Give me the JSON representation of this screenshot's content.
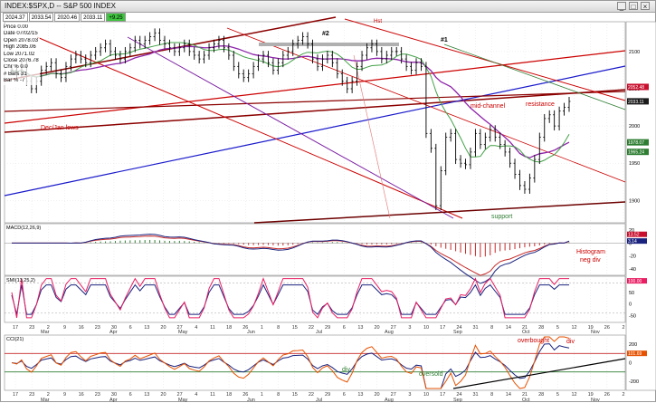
{
  "window": {
    "title": "INDEX:$SPX,D -- S&P 500 INDEX",
    "buttons": [
      "_",
      "□",
      "×"
    ]
  },
  "ohlc_strip": [
    "2024.37",
    "2033.54",
    "2020.46",
    "2033.11",
    "+9.25"
  ],
  "info_box": [
    "Price  0.00",
    "Date  07/02/15",
    "Open  2078.03",
    "High  2085.06",
    "Low  2071.02",
    "Close  2076.78",
    "Chr %  0.0",
    "# Bars 31",
    "Bar %  -7"
  ],
  "annotations": {
    "peak_label": "Hst",
    "label_1": "#1",
    "label_2": "#2",
    "mid_channel": "mid-channel",
    "resistance": "resistance",
    "dec_jan_lows": "Dec/Jan lows",
    "support": "support",
    "histogram_neg_div": "Histogram\nneg div",
    "overbought": "overbought",
    "div_top": "div",
    "div_bottom": "div",
    "oversold": "oversold"
  },
  "panel_labels": {
    "macd": "MACD(12,26,9)",
    "stoch": "SMI(13,25,2)",
    "cci": "CCI(21)"
  },
  "price_axis": {
    "ticks": [
      2100,
      2050,
      2000,
      1950,
      1900
    ],
    "tags": [
      {
        "text": "2052.48",
        "color": "#c8102e"
      },
      {
        "text": "2033.11",
        "color": "#1a1a1a"
      },
      {
        "text": "1978.07",
        "color": "#2e7d32"
      },
      {
        "text": "1965.24",
        "color": "#2e7d32"
      }
    ]
  },
  "macd_axis": {
    "ticks": [
      20,
      0,
      -20,
      -40
    ],
    "tags": [
      {
        "text": "13.52",
        "color": "#c8102e"
      },
      {
        "text": "3.14",
        "color": "#1a237e"
      }
    ]
  },
  "stoch_axis": {
    "ticks": [
      100,
      50,
      0,
      -50
    ],
    "tags": [
      {
        "text": "100.00",
        "color": "#e91e63"
      }
    ]
  },
  "cci_axis": {
    "ticks": [
      200,
      0,
      -200
    ],
    "tags": [
      {
        "text": "101.69",
        "color": "#e65100"
      }
    ]
  },
  "chart_data": {
    "type": "bar",
    "title": "INDEX:$SPX,D -- S&P 500 INDEX",
    "panels": [
      "price",
      "MACD",
      "stochastic",
      "CCI"
    ],
    "ylim": [
      1870,
      2140
    ],
    "x_day_ticks": [
      "17",
      "23",
      "2",
      "9",
      "16",
      "23",
      "30",
      "6",
      "13",
      "20",
      "27",
      "4",
      "11",
      "18",
      "26",
      "1",
      "8",
      "15",
      "22",
      "29",
      "6",
      "13",
      "20",
      "27",
      "3",
      "10",
      "17",
      "24",
      "31",
      "8",
      "14",
      "21",
      "28",
      "5",
      "12",
      "19",
      "26",
      "2"
    ],
    "x_months": [
      "Mar",
      "Apr",
      "May",
      "Jun",
      "Jul",
      "Aug",
      "Sep",
      "Oct",
      "Nov"
    ],
    "ohlc_last": {
      "open": 2024.37,
      "high": 2033.54,
      "low": 2020.46,
      "close": 2033.11,
      "change": 9.25
    },
    "closes": [
      2075,
      2070,
      2080,
      2060,
      2050,
      2060,
      2075,
      2080,
      2085,
      2070,
      2065,
      2080,
      2090,
      2095,
      2090,
      2085,
      2095,
      2100,
      2105,
      2110,
      2100,
      2095,
      2090,
      2100,
      2105,
      2115,
      2110,
      2115,
      2120,
      2125,
      2115,
      2110,
      2105,
      2100,
      2105,
      2110,
      2100,
      2095,
      2090,
      2095,
      2105,
      2110,
      2115,
      2105,
      2095,
      2080,
      2070,
      2065,
      2070,
      2080,
      2090,
      2095,
      2085,
      2075,
      2085,
      2095,
      2100,
      2110,
      2115,
      2120,
      2110,
      2090,
      2080,
      2090,
      2095,
      2085,
      2070,
      2060,
      2050,
      2060,
      2080,
      2095,
      2105,
      2110,
      2100,
      2090,
      2095,
      2100,
      2100,
      2090,
      2080,
      2075,
      2085,
      2080,
      1990,
      1970,
      1893,
      1940,
      1985,
      1990,
      1955,
      1950,
      1948,
      1965,
      1990,
      1975,
      1985,
      1995,
      1985,
      1975,
      1965,
      1950,
      1935,
      1920,
      1915,
      1930,
      1955,
      1985,
      2010,
      2015,
      2000,
      2020,
      2025,
      2033
    ]
  }
}
